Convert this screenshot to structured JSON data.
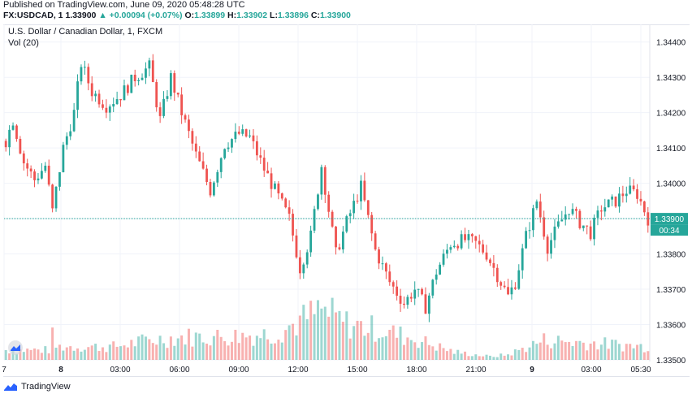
{
  "header": {
    "published": "Published on TradingView.com, June 09, 2020 05:48:28 UTC",
    "symbol": "FX:USDCAD, 1",
    "last": "1.33900",
    "change": "+0.00094 (+0.07%)",
    "o_label": "O:",
    "o_value": "1.33899",
    "h_label": "H:",
    "h_value": "1.33902",
    "l_label": "L:",
    "l_value": "1.33896",
    "c_label": "C:",
    "c_value": "1.33900"
  },
  "legend": {
    "title": "U.S. Dollar / Canadian Dollar, 1, FXCM",
    "volume": "Vol (20)"
  },
  "footer": {
    "brand": "TradingView"
  },
  "colors": {
    "up": "#26a69a",
    "down": "#ef5350",
    "grid": "#f0f3fa",
    "axis_text": "#131722",
    "price_tag": "#26a69a"
  },
  "chart_data": {
    "type": "candlestick",
    "ylim": [
      1.335,
      1.3445
    ],
    "y_ticks": [
      "1.33500",
      "1.33600",
      "1.33700",
      "1.33800",
      "1.33900",
      "1.34000",
      "1.34100",
      "1.34200",
      "1.34300",
      "1.34400"
    ],
    "x_ticks": [
      "7",
      "8",
      "03:00",
      "06:00",
      "09:00",
      "12:00",
      "15:00",
      "18:00",
      "21:00",
      "9",
      "03:00",
      "05:30"
    ],
    "last_price": "1.33900",
    "countdown": "00:34",
    "price_path": [
      [
        0,
        1.3412
      ],
      [
        2,
        1.3418
      ],
      [
        5,
        1.3406
      ],
      [
        8,
        1.3401
      ],
      [
        11,
        1.3405
      ],
      [
        13,
        1.3392
      ],
      [
        16,
        1.341
      ],
      [
        19,
        1.342
      ],
      [
        21,
        1.3434
      ],
      [
        24,
        1.3426
      ],
      [
        28,
        1.3422
      ],
      [
        32,
        1.3425
      ],
      [
        36,
        1.343
      ],
      [
        40,
        1.3433
      ],
      [
        43,
        1.3418
      ],
      [
        46,
        1.343
      ],
      [
        49,
        1.342
      ],
      [
        53,
        1.3408
      ],
      [
        57,
        1.3398
      ],
      [
        61,
        1.3411
      ],
      [
        65,
        1.3414
      ],
      [
        68,
        1.3413
      ],
      [
        72,
        1.3404
      ],
      [
        76,
        1.3396
      ],
      [
        79,
        1.339
      ],
      [
        82,
        1.3376
      ],
      [
        85,
        1.3385
      ],
      [
        88,
        1.3405
      ],
      [
        92,
        1.338
      ],
      [
        95,
        1.3389
      ],
      [
        99,
        1.3399
      ],
      [
        103,
        1.3381
      ],
      [
        107,
        1.3372
      ],
      [
        111,
        1.3366
      ],
      [
        114,
        1.337
      ],
      [
        117,
        1.3365
      ],
      [
        120,
        1.3375
      ],
      [
        124,
        1.3383
      ],
      [
        128,
        1.3384
      ],
      [
        131,
        1.3383
      ],
      [
        134,
        1.338
      ],
      [
        137,
        1.3374
      ],
      [
        140,
        1.3368
      ],
      [
        142,
        1.3372
      ],
      [
        145,
        1.3385
      ],
      [
        148,
        1.3395
      ],
      [
        151,
        1.3382
      ],
      [
        154,
        1.3388
      ],
      [
        157,
        1.3393
      ],
      [
        160,
        1.3389
      ],
      [
        163,
        1.3386
      ],
      [
        166,
        1.3393
      ],
      [
        170,
        1.3395
      ],
      [
        173,
        1.3398
      ],
      [
        176,
        1.3397
      ],
      [
        179,
        1.339
      ]
    ],
    "volume_profile": [
      [
        0,
        0.15
      ],
      [
        12,
        0.15
      ],
      [
        13,
        0.35
      ],
      [
        14,
        0.2
      ],
      [
        30,
        0.2
      ],
      [
        40,
        0.3
      ],
      [
        50,
        0.35
      ],
      [
        60,
        0.35
      ],
      [
        75,
        0.4
      ],
      [
        88,
        0.75
      ],
      [
        95,
        0.55
      ],
      [
        105,
        0.45
      ],
      [
        115,
        0.3
      ],
      [
        125,
        0.12
      ],
      [
        135,
        0.05
      ],
      [
        140,
        0.08
      ],
      [
        150,
        0.3
      ],
      [
        165,
        0.25
      ],
      [
        179,
        0.2
      ]
    ]
  }
}
